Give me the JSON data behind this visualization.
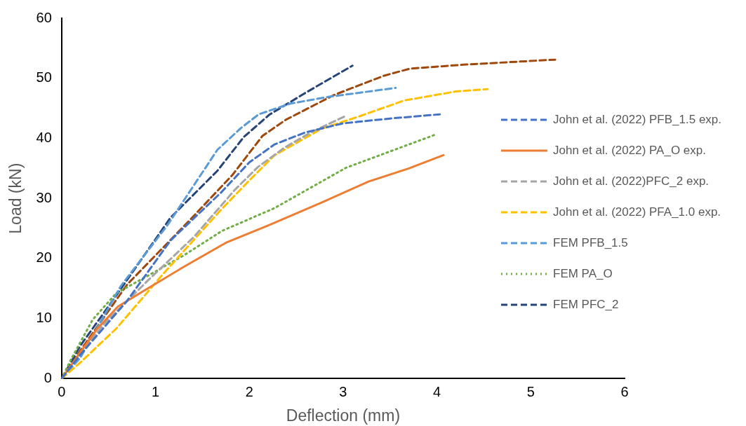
{
  "chart_data": {
    "type": "line",
    "xlabel": "Deflection (mm)",
    "ylabel": "Load (kN)",
    "xlim": [
      0,
      6
    ],
    "xticks": [
      0,
      1,
      2,
      3,
      4,
      5,
      6
    ],
    "ylim": [
      0,
      60
    ],
    "yticks": [
      0,
      10,
      20,
      30,
      40,
      50,
      60
    ],
    "grid": false,
    "legend": "right",
    "marker": "none",
    "series": [
      {
        "name": "John et al. (2022) PFB_1.5 exp.",
        "color": "#4472c4",
        "line_style": "dashed",
        "x": [
          0,
          0.2,
          0.7,
          1.16,
          1.7,
          2.0,
          2.27,
          2.6,
          3.0,
          3.5,
          4.03
        ],
        "values": [
          0,
          4,
          13,
          23,
          31,
          36,
          39,
          41,
          42.5,
          43.3,
          44
        ]
      },
      {
        "name": "John et al. (2022) PA_O exp.",
        "color": "#ed7d31",
        "line_style": "solid",
        "x": [
          0,
          0.2,
          0.38,
          0.6,
          0.83,
          1.29,
          1.76,
          2.2,
          2.77,
          3.27,
          3.7,
          4.07
        ],
        "values": [
          0,
          4.4,
          8.3,
          12,
          14.2,
          18.5,
          22.7,
          25.5,
          29.3,
          32.8,
          35,
          37.2
        ]
      },
      {
        "name": "John et al. (2022)PFC_2 exp.",
        "color": "#a5a5a5",
        "line_style": "dashed",
        "x": [
          0,
          0.45,
          0.93,
          1.41,
          1.85,
          2.09,
          2.37,
          2.67,
          3.01
        ],
        "values": [
          0,
          9.1,
          16.5,
          23.6,
          31.5,
          35.2,
          38.4,
          41.1,
          43.6
        ]
      },
      {
        "name": " John et al. (2022) PFA_1.0 exp.",
        "color": "#ffc000",
        "line_style": "dashed",
        "x": [
          0,
          0.2,
          0.58,
          1.08,
          1.71,
          2.0,
          2.27,
          2.77,
          3.18,
          3.65,
          4.2,
          4.54
        ],
        "values": [
          0,
          2.7,
          8.3,
          17.4,
          28.3,
          33,
          37.2,
          41.6,
          43.7,
          46.3,
          47.8,
          48.2
        ]
      },
      {
        "name": "FEM PFB_1.5",
        "color": "#5b9bd5",
        "line_style": "dashed",
        "x": [
          0,
          0.2,
          0.63,
          1.13,
          1.66,
          1.91,
          2.1,
          2.44,
          2.84,
          3.56
        ],
        "values": [
          0,
          3.5,
          15.4,
          25.6,
          38.1,
          41.7,
          44,
          45.8,
          46.9,
          48.4
        ]
      },
      {
        "name": "FEM PA_O",
        "color": "#70ad47",
        "line_style": "dotted",
        "x": [
          0,
          0.1,
          0.33,
          0.58,
          0.95,
          1.3,
          1.71,
          2.27,
          3.03,
          3.98
        ],
        "values": [
          0,
          3.2,
          9.8,
          14.2,
          17.4,
          20.5,
          24.6,
          28.4,
          35.1,
          40.6
        ]
      },
      {
        "name": "FEM PFC_2",
        "color": "#264478",
        "line_style": "dashed",
        "x": [
          0,
          0.2,
          0.58,
          1.16,
          1.66,
          1.94,
          2.21,
          2.59,
          3.1
        ],
        "values": [
          0,
          5.5,
          13.8,
          26.8,
          34.6,
          40.2,
          43.9,
          47.5,
          52.1
        ]
      },
      {
        "color": "#9e480e",
        "line_style": "dashed",
        "x": [
          0,
          0.2,
          0.7,
          1.36,
          1.82,
          2.14,
          2.39,
          2.9,
          3.43,
          3.71,
          4.31,
          5.26
        ],
        "values": [
          0,
          4.7,
          15.7,
          26.3,
          33.9,
          40.4,
          43.1,
          47.2,
          50.4,
          51.6,
          52.3,
          53.1
        ]
      }
    ]
  }
}
